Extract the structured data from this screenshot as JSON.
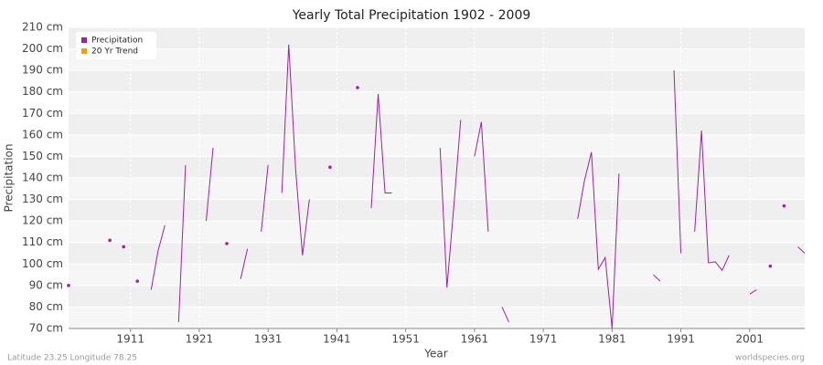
{
  "chart_data": {
    "type": "line",
    "title": "Yearly Total Precipitation 1902 - 2009",
    "xlabel": "Year",
    "ylabel": "Precipitation",
    "footer_left": "Latitude 23.25 Longitude 78.25",
    "footer_right": "worldspecies.org",
    "x": [
      1902,
      1903,
      1904,
      1905,
      1906,
      1907,
      1908,
      1909,
      1910,
      1911,
      1912,
      1913,
      1914,
      1915,
      1916,
      1917,
      1918,
      1919,
      1920,
      1921,
      1922,
      1923,
      1924,
      1925,
      1926,
      1927,
      1928,
      1929,
      1930,
      1931,
      1932,
      1933,
      1934,
      1935,
      1936,
      1937,
      1938,
      1939,
      1940,
      1941,
      1942,
      1943,
      1944,
      1945,
      1946,
      1947,
      1948,
      1949,
      1950,
      1951,
      1952,
      1953,
      1954,
      1955,
      1956,
      1957,
      1958,
      1959,
      1960,
      1961,
      1962,
      1963,
      1964,
      1965,
      1966,
      1967,
      1968,
      1969,
      1970,
      1971,
      1972,
      1973,
      1974,
      1975,
      1976,
      1977,
      1978,
      1979,
      1980,
      1981,
      1982,
      1983,
      1984,
      1985,
      1986,
      1987,
      1988,
      1989,
      1990,
      1991,
      1992,
      1993,
      1994,
      1995,
      1996,
      1997,
      1998,
      1999,
      2000,
      2001,
      2002,
      2003,
      2004,
      2005,
      2006,
      2007,
      2008,
      2009
    ],
    "series": [
      {
        "name": "Precipitation",
        "color": "#a020a0",
        "values": [
          90,
          null,
          null,
          null,
          null,
          null,
          111,
          null,
          108,
          null,
          92,
          null,
          88,
          106,
          118,
          null,
          73,
          146,
          null,
          null,
          120,
          154,
          null,
          109.5,
          null,
          93,
          107,
          null,
          115,
          146,
          null,
          133,
          202,
          144,
          104,
          130,
          null,
          null,
          145,
          null,
          null,
          null,
          182,
          null,
          126,
          179,
          133,
          133,
          null,
          null,
          null,
          null,
          null,
          null,
          154,
          89,
          127,
          167,
          null,
          150,
          166,
          115,
          null,
          80,
          73,
          null,
          null,
          null,
          null,
          null,
          null,
          null,
          null,
          null,
          121,
          139,
          152,
          97.5,
          103,
          70,
          142,
          null,
          null,
          null,
          null,
          95,
          92,
          null,
          190,
          105,
          null,
          115,
          162,
          100.5,
          101,
          97,
          104,
          null,
          null,
          86,
          88,
          null,
          99,
          null,
          127,
          null,
          108,
          105
        ]
      },
      {
        "name": "20 Yr Trend",
        "color": "#f5a000",
        "values": [
          null,
          null,
          null,
          null,
          null,
          null,
          null,
          null,
          null,
          null,
          null,
          null,
          null,
          null,
          null,
          null,
          null,
          null,
          null,
          null,
          null,
          null,
          null,
          null,
          null,
          null,
          null,
          null,
          null,
          null,
          null,
          null,
          null,
          null,
          null,
          null,
          null,
          null,
          null,
          null,
          null,
          null,
          null,
          null,
          null,
          null,
          null,
          null,
          null,
          null,
          null,
          null,
          null,
          null,
          null,
          null,
          null,
          null,
          null,
          null,
          null,
          null,
          null,
          null,
          null,
          null,
          null,
          null,
          null,
          null,
          null,
          null,
          null,
          null,
          null,
          null,
          null,
          null,
          null,
          null,
          null,
          null,
          null,
          null,
          null,
          null,
          null,
          null,
          null,
          null,
          null,
          null,
          null,
          null,
          null,
          null,
          null,
          null,
          null,
          null,
          null,
          null,
          null,
          null,
          null,
          null,
          null,
          null
        ]
      }
    ],
    "xlim": [
      1902,
      2009
    ],
    "xticks": [
      1911,
      1921,
      1931,
      1941,
      1951,
      1961,
      1971,
      1981,
      1991,
      2001
    ],
    "ylim": [
      70,
      210
    ],
    "yticks": [
      {
        "value": 70,
        "label": "70 cm"
      },
      {
        "value": 80,
        "label": "80 cm"
      },
      {
        "value": 90,
        "label": "90 cm"
      },
      {
        "value": 100,
        "label": "100 cm"
      },
      {
        "value": 110,
        "label": "110 cm"
      },
      {
        "value": 120,
        "label": "120 cm"
      },
      {
        "value": 130,
        "label": "130 cm"
      },
      {
        "value": 140,
        "label": "140 cm"
      },
      {
        "value": 150,
        "label": "150 cm"
      },
      {
        "value": 160,
        "label": "160 cm"
      },
      {
        "value": 170,
        "label": "170 cm"
      },
      {
        "value": 180,
        "label": "180 cm"
      },
      {
        "value": 190,
        "label": "190 cm"
      },
      {
        "value": 200,
        "label": "200 cm"
      },
      {
        "value": 210,
        "label": "210 cm"
      }
    ],
    "grid": true,
    "legend": "upper left"
  }
}
